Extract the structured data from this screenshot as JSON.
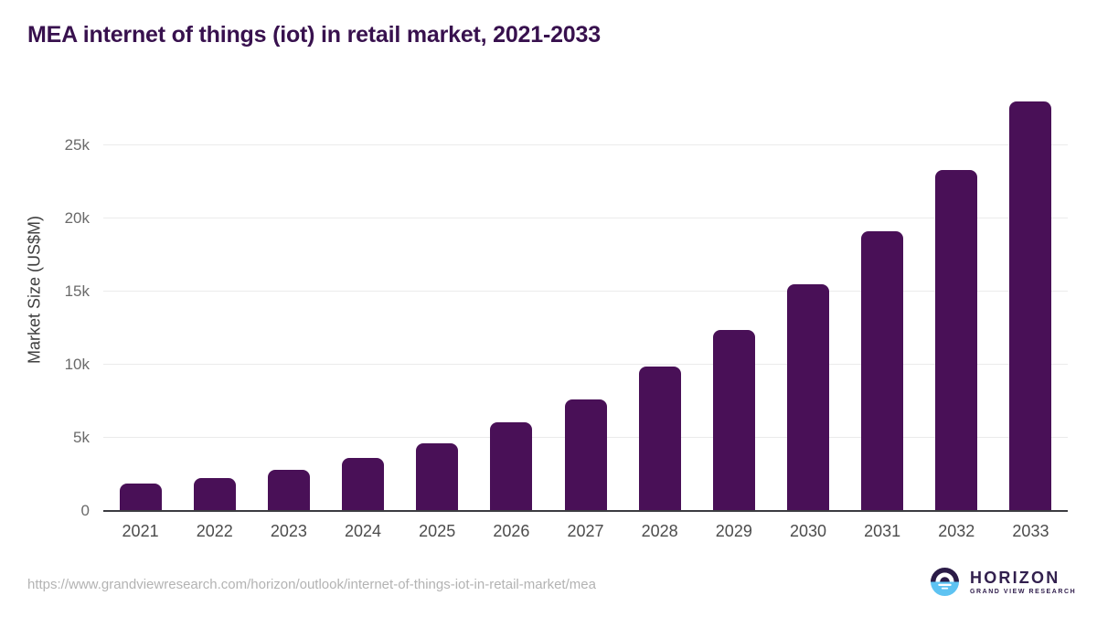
{
  "title": "MEA internet of things (iot) in retail market, 2021-2033",
  "chart_data": {
    "type": "bar",
    "title": "MEA internet of things (iot) in retail market, 2021-2033",
    "categories": [
      "2021",
      "2022",
      "2023",
      "2024",
      "2025",
      "2026",
      "2027",
      "2028",
      "2029",
      "2030",
      "2031",
      "2032",
      "2033"
    ],
    "values": [
      1900,
      2250,
      2800,
      3650,
      4650,
      6050,
      7650,
      9850,
      12400,
      15500,
      19150,
      23350,
      28000
    ],
    "xlabel": "",
    "ylabel": "Market Size (US$M)",
    "ylim": [
      0,
      28700
    ],
    "yticks": [
      {
        "value": 0,
        "label": "0"
      },
      {
        "value": 5000,
        "label": "5k"
      },
      {
        "value": 10000,
        "label": "10k"
      },
      {
        "value": 15000,
        "label": "15k"
      },
      {
        "value": 20000,
        "label": "20k"
      },
      {
        "value": 25000,
        "label": "25k"
      }
    ],
    "grid": "horizontal",
    "legend": "none",
    "bar_color": "#491057"
  },
  "colors": {
    "title_text": "#38114e",
    "bar": "#491057",
    "gridline": "#ebebeb",
    "axis_line": "#3c3c41",
    "tick_text": "#6a6a6a",
    "category_text": "#4c4c4c",
    "footer_text": "#b3b3b3",
    "logo_navy": "#2b1b47",
    "logo_blue": "#5ec3f2"
  },
  "footer": {
    "source_url": "https://www.grandviewresearch.com/horizon/outlook/internet-of-things-iot-in-retail-market/mea",
    "logo_name": "HORIZON",
    "logo_subtitle": "GRAND VIEW RESEARCH"
  }
}
